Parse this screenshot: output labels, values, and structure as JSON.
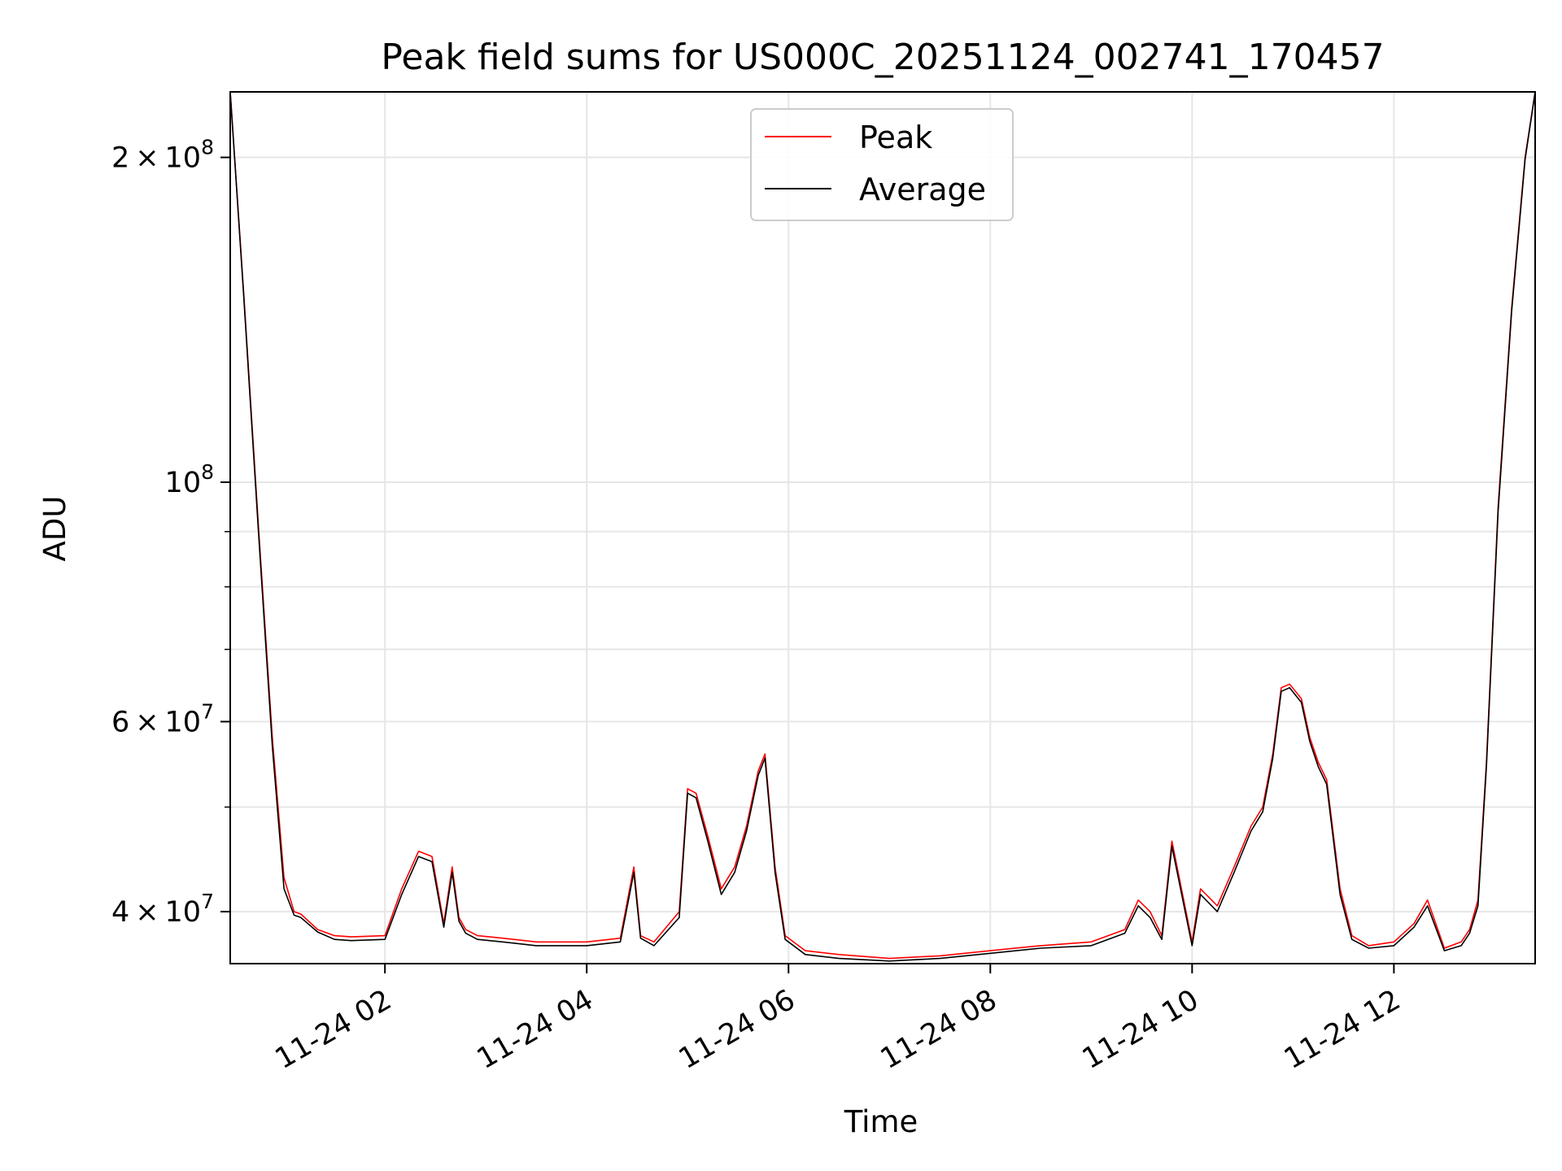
{
  "chart_data": {
    "type": "line",
    "title": "Peak field sums for US000C_20251124_002741_170457",
    "xlabel": "Time",
    "ylabel": "ADU",
    "y_scale": "log",
    "ylim": [
      35800000,
      230000000
    ],
    "xlim": [
      "2025-11-24 00:28",
      "2025-11-24 13:24"
    ],
    "grid": true,
    "legend_position": "upper center",
    "x_ticks": [
      {
        "t": "2025-11-24 02:00",
        "label": "11-24 02"
      },
      {
        "t": "2025-11-24 04:00",
        "label": "11-24 04"
      },
      {
        "t": "2025-11-24 06:00",
        "label": "11-24 06"
      },
      {
        "t": "2025-11-24 08:00",
        "label": "11-24 08"
      },
      {
        "t": "2025-11-24 10:00",
        "label": "11-24 10"
      },
      {
        "t": "2025-11-24 12:00",
        "label": "11-24 12"
      }
    ],
    "y_major_ticks": [
      {
        "value": 40000000,
        "mantissa": "4",
        "exp": "7"
      },
      {
        "value": 60000000,
        "mantissa": "6",
        "exp": "7"
      },
      {
        "value": 100000000,
        "mantissa": "",
        "exp": "8"
      },
      {
        "value": 200000000,
        "mantissa": "2",
        "exp": "8"
      }
    ],
    "y_minor_ticks": [
      50000000,
      70000000,
      80000000,
      90000000
    ],
    "series": [
      {
        "name": "Peak",
        "color": "#ff0000",
        "x": [
          "2025-11-24 00:28",
          "2025-11-24 00:36",
          "2025-11-24 00:45",
          "2025-11-24 00:53",
          "2025-11-24 01:00",
          "2025-11-24 01:06",
          "2025-11-24 01:10",
          "2025-11-24 01:20",
          "2025-11-24 01:30",
          "2025-11-24 01:40",
          "2025-11-24 02:00",
          "2025-11-24 02:10",
          "2025-11-24 02:20",
          "2025-11-24 02:28",
          "2025-11-24 02:35",
          "2025-11-24 02:40",
          "2025-11-24 02:44",
          "2025-11-24 02:48",
          "2025-11-24 02:55",
          "2025-11-24 03:10",
          "2025-11-24 03:30",
          "2025-11-24 04:00",
          "2025-11-24 04:20",
          "2025-11-24 04:28",
          "2025-11-24 04:32",
          "2025-11-24 04:40",
          "2025-11-24 04:55",
          "2025-11-24 05:00",
          "2025-11-24 05:05",
          "2025-11-24 05:12",
          "2025-11-24 05:20",
          "2025-11-24 05:28",
          "2025-11-24 05:35",
          "2025-11-24 05:42",
          "2025-11-24 05:46",
          "2025-11-24 05:52",
          "2025-11-24 05:58",
          "2025-11-24 06:10",
          "2025-11-24 06:30",
          "2025-11-24 07:00",
          "2025-11-24 07:30",
          "2025-11-24 08:00",
          "2025-11-24 08:30",
          "2025-11-24 09:00",
          "2025-11-24 09:20",
          "2025-11-24 09:28",
          "2025-11-24 09:35",
          "2025-11-24 09:42",
          "2025-11-24 09:48",
          "2025-11-24 10:00",
          "2025-11-24 10:05",
          "2025-11-24 10:15",
          "2025-11-24 10:25",
          "2025-11-24 10:35",
          "2025-11-24 10:42",
          "2025-11-24 10:48",
          "2025-11-24 10:53",
          "2025-11-24 10:58",
          "2025-11-24 11:05",
          "2025-11-24 11:10",
          "2025-11-24 11:15",
          "2025-11-24 11:20",
          "2025-11-24 11:28",
          "2025-11-24 11:35",
          "2025-11-24 11:45",
          "2025-11-24 12:00",
          "2025-11-24 12:12",
          "2025-11-24 12:20",
          "2025-11-24 12:30",
          "2025-11-24 12:40",
          "2025-11-24 12:45",
          "2025-11-24 12:50",
          "2025-11-24 12:55",
          "2025-11-24 13:02",
          "2025-11-24 13:10",
          "2025-11-24 13:18",
          "2025-11-24 13:24"
        ],
        "y": [
          230000000,
          150000000,
          90000000,
          58000000,
          43000000,
          40000000,
          39800000,
          38500000,
          38000000,
          37900000,
          38000000,
          42000000,
          45500000,
          45000000,
          39000000,
          44000000,
          39500000,
          38500000,
          38000000,
          37800000,
          37500000,
          37500000,
          37800000,
          44000000,
          38000000,
          37500000,
          40000000,
          52000000,
          51500000,
          47000000,
          42000000,
          44000000,
          48000000,
          54000000,
          56000000,
          44000000,
          38000000,
          36800000,
          36500000,
          36200000,
          36400000,
          36800000,
          37200000,
          37500000,
          38500000,
          41000000,
          40000000,
          38000000,
          46500000,
          37500000,
          42000000,
          40500000,
          44000000,
          48000000,
          50000000,
          56000000,
          64500000,
          65000000,
          63000000,
          58000000,
          55000000,
          53000000,
          42000000,
          38000000,
          37200000,
          37500000,
          39000000,
          41000000,
          37000000,
          37500000,
          38500000,
          41000000,
          55000000,
          95000000,
          145000000,
          200000000,
          230000000
        ]
      },
      {
        "name": "Average",
        "color": "#000000",
        "x": [
          "2025-11-24 00:28",
          "2025-11-24 00:36",
          "2025-11-24 00:45",
          "2025-11-24 00:53",
          "2025-11-24 01:00",
          "2025-11-24 01:06",
          "2025-11-24 01:10",
          "2025-11-24 01:20",
          "2025-11-24 01:30",
          "2025-11-24 01:40",
          "2025-11-24 02:00",
          "2025-11-24 02:10",
          "2025-11-24 02:20",
          "2025-11-24 02:28",
          "2025-11-24 02:35",
          "2025-11-24 02:40",
          "2025-11-24 02:44",
          "2025-11-24 02:48",
          "2025-11-24 02:55",
          "2025-11-24 03:10",
          "2025-11-24 03:30",
          "2025-11-24 04:00",
          "2025-11-24 04:20",
          "2025-11-24 04:28",
          "2025-11-24 04:32",
          "2025-11-24 04:40",
          "2025-11-24 04:55",
          "2025-11-24 05:00",
          "2025-11-24 05:05",
          "2025-11-24 05:12",
          "2025-11-24 05:20",
          "2025-11-24 05:28",
          "2025-11-24 05:35",
          "2025-11-24 05:42",
          "2025-11-24 05:46",
          "2025-11-24 05:52",
          "2025-11-24 05:58",
          "2025-11-24 06:10",
          "2025-11-24 06:30",
          "2025-11-24 07:00",
          "2025-11-24 07:30",
          "2025-11-24 08:00",
          "2025-11-24 08:30",
          "2025-11-24 09:00",
          "2025-11-24 09:20",
          "2025-11-24 09:28",
          "2025-11-24 09:35",
          "2025-11-24 09:42",
          "2025-11-24 09:48",
          "2025-11-24 10:00",
          "2025-11-24 10:05",
          "2025-11-24 10:15",
          "2025-11-24 10:25",
          "2025-11-24 10:35",
          "2025-11-24 10:42",
          "2025-11-24 10:48",
          "2025-11-24 10:53",
          "2025-11-24 10:58",
          "2025-11-24 11:05",
          "2025-11-24 11:10",
          "2025-11-24 11:15",
          "2025-11-24 11:20",
          "2025-11-24 11:28",
          "2025-11-24 11:35",
          "2025-11-24 11:45",
          "2025-11-24 12:00",
          "2025-11-24 12:12",
          "2025-11-24 12:20",
          "2025-11-24 12:30",
          "2025-11-24 12:40",
          "2025-11-24 12:45",
          "2025-11-24 12:50",
          "2025-11-24 12:55",
          "2025-11-24 13:02",
          "2025-11-24 13:10",
          "2025-11-24 13:18",
          "2025-11-24 13:24"
        ],
        "y": [
          230000000,
          149000000,
          89000000,
          57000000,
          42000000,
          39700000,
          39500000,
          38300000,
          37700000,
          37600000,
          37700000,
          41500000,
          45000000,
          44500000,
          38700000,
          43500000,
          39200000,
          38200000,
          37700000,
          37500000,
          37200000,
          37200000,
          37500000,
          43500000,
          37800000,
          37200000,
          39500000,
          51500000,
          51000000,
          46500000,
          41500000,
          43500000,
          47500000,
          53500000,
          55500000,
          43500000,
          37700000,
          36500000,
          36200000,
          36000000,
          36200000,
          36600000,
          37000000,
          37200000,
          38200000,
          40500000,
          39500000,
          37700000,
          46000000,
          37200000,
          41500000,
          40000000,
          43500000,
          47500000,
          49500000,
          55500000,
          64000000,
          64500000,
          62500000,
          57500000,
          54500000,
          52500000,
          41500000,
          37700000,
          37000000,
          37200000,
          38700000,
          40500000,
          36800000,
          37200000,
          38200000,
          40500000,
          54500000,
          94000000,
          144000000,
          199000000,
          230000000
        ]
      }
    ]
  }
}
